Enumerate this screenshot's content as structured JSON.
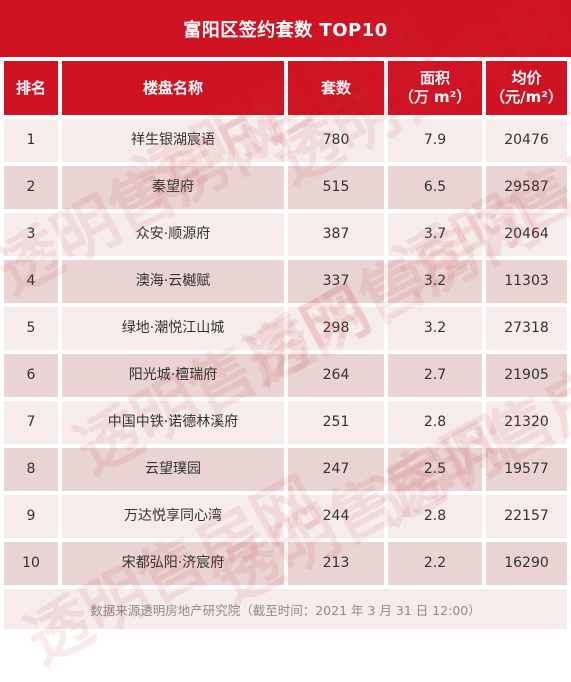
{
  "title": "富阳区签约套数 TOP10",
  "headers": {
    "rank": "排名",
    "name": "楼盘名称",
    "units": "套数",
    "area_line1": "面积",
    "area_line2": "（万 m²）",
    "price_line1": "均价",
    "price_line2": "（元/m²）"
  },
  "rows": [
    {
      "rank": "1",
      "name": "祥生银湖宸语",
      "units": "780",
      "area": "7.9",
      "price": "20476"
    },
    {
      "rank": "2",
      "name": "秦望府",
      "units": "515",
      "area": "6.5",
      "price": "29587"
    },
    {
      "rank": "3",
      "name": "众安·顺源府",
      "units": "387",
      "area": "3.7",
      "price": "20464"
    },
    {
      "rank": "4",
      "name": "澳海·云樾赋",
      "units": "337",
      "area": "3.2",
      "price": "11303"
    },
    {
      "rank": "5",
      "name": "绿地·潮悦江山城",
      "units": "298",
      "area": "3.2",
      "price": "27318"
    },
    {
      "rank": "6",
      "name": "阳光城·檀瑞府",
      "units": "264",
      "area": "2.7",
      "price": "21905"
    },
    {
      "rank": "7",
      "name": "中国中铁·诺德林溪府",
      "units": "251",
      "area": "2.8",
      "price": "21320"
    },
    {
      "rank": "8",
      "name": "云望璞园",
      "units": "247",
      "area": "2.5",
      "price": "19577"
    },
    {
      "rank": "9",
      "name": "万达悦享同心湾",
      "units": "244",
      "area": "2.8",
      "price": "22157"
    },
    {
      "rank": "10",
      "name": "宋都弘阳·济宸府",
      "units": "213",
      "area": "2.2",
      "price": "16290"
    }
  ],
  "footer": "数据来源透明房地产研究院（截至时间：2021 年 3 月 31 日 12:00）",
  "watermark": "透明售房网"
}
